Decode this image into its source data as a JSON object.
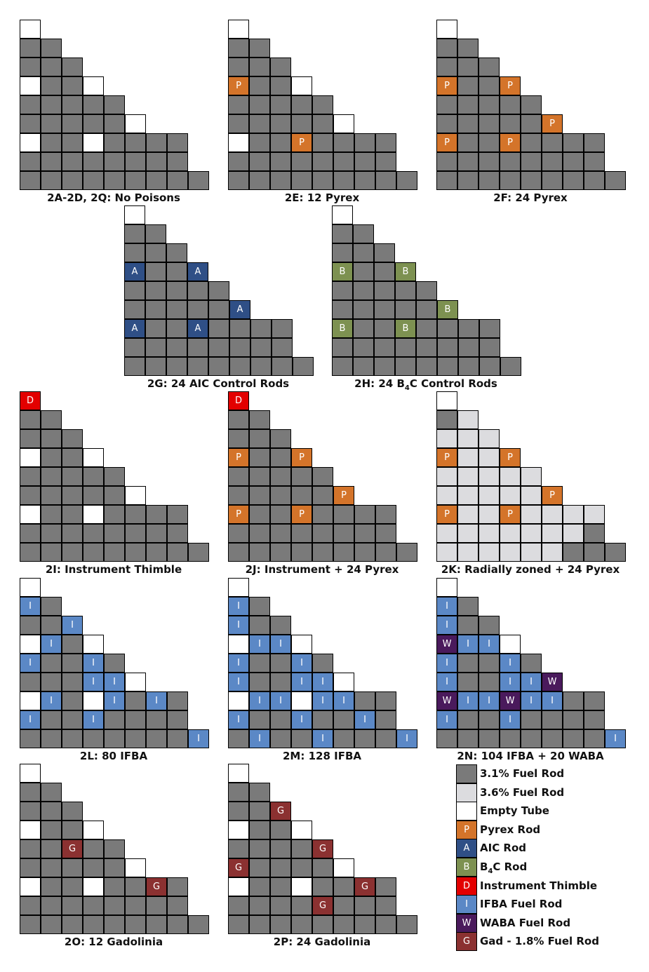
{
  "colors": {
    "F": "#7a7a7a",
    "L": "#dcdcdf",
    "E": "#ffffff",
    "P": "#d4742a",
    "A": "#2f4f86",
    "B": "#7d9151",
    "D": "#e30000",
    "I": "#5b88c6",
    "W": "#4a1a5c",
    "G": "#8b3131"
  },
  "cell_letters": {
    "P": "P",
    "A": "A",
    "B": "B",
    "D": "D",
    "I": "I",
    "W": "W",
    "G": "G"
  },
  "panels": [
    {
      "id": "2a",
      "caption": "2A-2D, 2Q: No Poisons",
      "rows": [
        "E",
        "FF",
        "FFF",
        "EFFE",
        "FFFFF",
        "FFFFFE",
        "EFFEFFFF",
        "FFFFFFFF",
        "FFFFFFFFF"
      ]
    },
    {
      "id": "2e",
      "caption": "2E: 12 Pyrex",
      "rows": [
        "E",
        "FF",
        "FFF",
        "PFFE",
        "FFFFF",
        "FFFFFE",
        "EFFPFFFF",
        "FFFFFFFF",
        "FFFFFFFFF"
      ]
    },
    {
      "id": "2f",
      "caption": "2F: 24 Pyrex",
      "rows": [
        "E",
        "FF",
        "FFF",
        "PFFP",
        "FFFFF",
        "FFFFFP",
        "PFFPFFFF",
        "FFFFFFFF",
        "FFFFFFFFF"
      ]
    },
    {
      "id": "2g",
      "caption": "2G: 24 AIC Control Rods",
      "rows": [
        "E",
        "FF",
        "FFF",
        "AFFA",
        "FFFFF",
        "FFFFFA",
        "AFFAFFFF",
        "FFFFFFFF",
        "FFFFFFFFF"
      ]
    },
    {
      "id": "2h",
      "caption_parts": [
        "2H: 24 B",
        "4",
        "C Control Rods"
      ],
      "rows": [
        "E",
        "FF",
        "FFF",
        "BFFB",
        "FFFFF",
        "FFFFFB",
        "BFFBFFFF",
        "FFFFFFFF",
        "FFFFFFFFF"
      ]
    },
    {
      "id": "2i",
      "caption": "2I: Instrument Thimble",
      "rows": [
        "D",
        "FF",
        "FFF",
        "EFFE",
        "FFFFF",
        "FFFFFE",
        "EFFEFFFF",
        "FFFFFFFF",
        "FFFFFFFFF"
      ]
    },
    {
      "id": "2j",
      "caption": "2J: Instrument  + 24 Pyrex",
      "rows": [
        "D",
        "FF",
        "FFF",
        "PFFP",
        "FFFFF",
        "FFFFFP",
        "PFFPFFFF",
        "FFFFFFFF",
        "FFFFFFFFF"
      ]
    },
    {
      "id": "2k",
      "caption": "2K: Radially zoned  + 24 Pyrex",
      "rows": [
        "E",
        "FL",
        "LLL",
        "PLLP",
        "LLLLL",
        "LLLLLP",
        "PLLPLLLL",
        "LLLLLLLF",
        "LLLLLLFFF"
      ]
    },
    {
      "id": "2l",
      "caption": "2L: 80 IFBA",
      "rows": [
        "E",
        "IF",
        "FFI",
        "EIFE",
        "IFFIF",
        "FFFIIE",
        "EIFEIFIF",
        "IFFIFFFF",
        "FFFFFFFFI"
      ]
    },
    {
      "id": "2m",
      "caption": "2M: 128 IFBA",
      "rows": [
        "E",
        "IF",
        "IFF",
        "EIIE",
        "IFFIF",
        "IFFIIE",
        "EIIEIIFF",
        "IFFIFFIF",
        "FIFFIFFFI"
      ]
    },
    {
      "id": "2n",
      "caption": "2N: 104 IFBA + 20 WABA",
      "rows": [
        "E",
        "IF",
        "IFF",
        "WIIE",
        "IFFIF",
        "IFFIIW",
        "WIIWIIFF",
        "IFFIFFFF",
        "FFFFFFFFI"
      ]
    },
    {
      "id": "2o",
      "caption": "2O: 12 Gadolinia",
      "rows": [
        "E",
        "FF",
        "FFF",
        "EFFE",
        "FFGFF",
        "FFFFFE",
        "EFFEFFGF",
        "FFFFFFFF",
        "FFFFFFFFF"
      ]
    },
    {
      "id": "2p",
      "caption": "2P: 24 Gadolinia",
      "rows": [
        "E",
        "FF",
        "FFG",
        "EFFE",
        "FFFFG",
        "GFFFFE",
        "EFFEFFGF",
        "FFFFGFFF",
        "FFFFFFFFF"
      ]
    }
  ],
  "legend": [
    {
      "code": "F",
      "label": "3.1% Fuel Rod"
    },
    {
      "code": "L",
      "label": "3.6% Fuel Rod"
    },
    {
      "code": "E",
      "label": "Empty Tube"
    },
    {
      "code": "P",
      "label": "Pyrex Rod"
    },
    {
      "code": "A",
      "label": "AIC Rod"
    },
    {
      "code": "B",
      "label_parts": [
        "B",
        "4",
        "C Rod"
      ]
    },
    {
      "code": "D",
      "label": "Instrument Thimble"
    },
    {
      "code": "I",
      "label": "IFBA Fuel Rod"
    },
    {
      "code": "W",
      "label": "WABA Fuel Rod"
    },
    {
      "code": "G",
      "label": "Gad - 1.8% Fuel Rod"
    }
  ]
}
